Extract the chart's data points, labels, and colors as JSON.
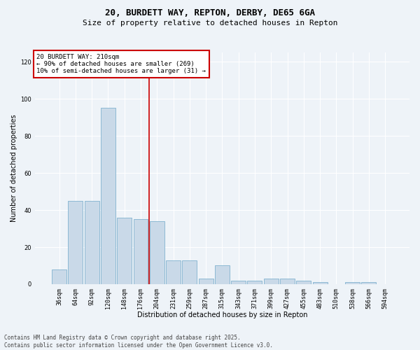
{
  "title": "20, BURDETT WAY, REPTON, DERBY, DE65 6GA",
  "subtitle": "Size of property relative to detached houses in Repton",
  "xlabel": "Distribution of detached houses by size in Repton",
  "ylabel": "Number of detached properties",
  "categories": [
    "36sqm",
    "64sqm",
    "92sqm",
    "120sqm",
    "148sqm",
    "176sqm",
    "204sqm",
    "231sqm",
    "259sqm",
    "287sqm",
    "315sqm",
    "343sqm",
    "371sqm",
    "399sqm",
    "427sqm",
    "455sqm",
    "483sqm",
    "510sqm",
    "538sqm",
    "566sqm",
    "594sqm"
  ],
  "values": [
    8,
    45,
    45,
    95,
    36,
    35,
    34,
    13,
    13,
    3,
    10,
    2,
    2,
    3,
    3,
    2,
    1,
    0,
    1,
    1,
    0
  ],
  "bar_color": "#c9d9e8",
  "bar_edge_color": "#6fa8c9",
  "background_color": "#eef3f8",
  "grid_color": "#ffffff",
  "vline_x": 5.5,
  "vline_color": "#cc0000",
  "annotation_text": "20 BURDETT WAY: 210sqm\n← 90% of detached houses are smaller (269)\n10% of semi-detached houses are larger (31) →",
  "annotation_box_edgecolor": "#cc0000",
  "ylim": [
    0,
    125
  ],
  "yticks": [
    0,
    20,
    40,
    60,
    80,
    100,
    120
  ],
  "footer": "Contains HM Land Registry data © Crown copyright and database right 2025.\nContains public sector information licensed under the Open Government Licence v3.0.",
  "title_fontsize": 9,
  "subtitle_fontsize": 8,
  "label_fontsize": 7,
  "tick_fontsize": 6,
  "ann_fontsize": 6.5
}
